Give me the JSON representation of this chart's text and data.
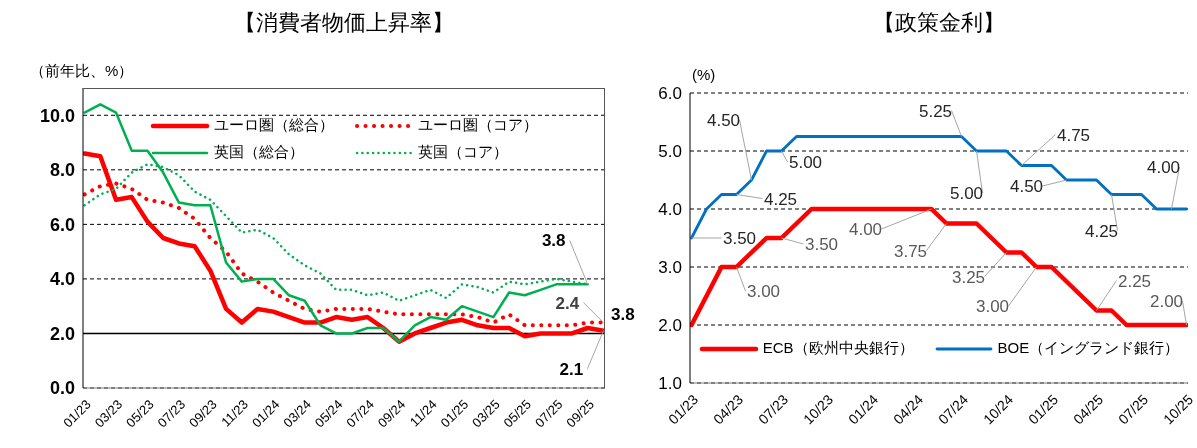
{
  "chart_data": [
    {
      "type": "line",
      "title": "【消費者物価上昇率】",
      "ylabel": "（前年比、%）",
      "categories": [
        "01/23",
        null,
        "03/23",
        null,
        "05/23",
        null,
        "07/23",
        null,
        "09/23",
        null,
        "11/23",
        null,
        "01/24",
        null,
        "03/24",
        null,
        "05/24",
        null,
        "07/24",
        null,
        "09/24",
        null,
        "11/24",
        null,
        "01/25",
        null,
        "03/25",
        null,
        "05/25",
        null,
        "07/25",
        null,
        "09/25",
        null
      ],
      "series": [
        {
          "name": "ユーロ圏（総合）",
          "color": "#ff0000",
          "line_style": "solid",
          "values": [
            8.6,
            8.5,
            6.9,
            7.0,
            6.1,
            5.5,
            5.3,
            5.2,
            4.3,
            2.9,
            2.4,
            2.9,
            2.8,
            2.6,
            2.4,
            2.4,
            2.6,
            2.5,
            2.6,
            2.2,
            1.7,
            2.0,
            2.2,
            2.4,
            2.5,
            2.3,
            2.2,
            2.2,
            1.9,
            2.0,
            2.0,
            2.0,
            2.2,
            2.1
          ],
          "value_labels": [
            null,
            null,
            null,
            null,
            null,
            null,
            null,
            null,
            null,
            null,
            null,
            null,
            null,
            null,
            null,
            null,
            null,
            null,
            null,
            null,
            null,
            null,
            null,
            null,
            null,
            null,
            null,
            null,
            null,
            null,
            null,
            null,
            null,
            "2.1"
          ]
        },
        {
          "name": "ユーロ圏（コア）",
          "color": "#ff0000",
          "line_style": "dotted",
          "values": [
            7.1,
            7.4,
            7.5,
            7.3,
            6.9,
            6.8,
            6.6,
            6.2,
            5.5,
            5.0,
            4.2,
            3.9,
            3.5,
            3.2,
            2.9,
            2.8,
            2.9,
            2.9,
            2.9,
            2.8,
            2.7,
            2.7,
            2.7,
            2.7,
            2.7,
            2.6,
            2.4,
            2.7,
            2.3,
            2.3,
            2.3,
            2.3,
            2.4,
            2.4
          ],
          "value_labels": [
            null,
            null,
            null,
            null,
            null,
            null,
            null,
            null,
            null,
            null,
            null,
            null,
            null,
            null,
            null,
            null,
            null,
            null,
            null,
            null,
            null,
            null,
            null,
            null,
            null,
            null,
            null,
            null,
            null,
            null,
            null,
            null,
            null,
            "2.4"
          ]
        },
        {
          "name": "英国（総合）",
          "color": "#00b050",
          "line_style": "solid",
          "values": [
            10.1,
            10.4,
            10.1,
            8.7,
            8.7,
            7.9,
            6.8,
            6.7,
            6.7,
            4.6,
            3.9,
            4.0,
            4.0,
            3.4,
            3.2,
            2.3,
            2.0,
            2.0,
            2.2,
            2.2,
            1.7,
            2.3,
            2.6,
            2.5,
            3.0,
            2.8,
            2.6,
            3.5,
            3.4,
            3.6,
            3.8,
            3.8,
            3.8,
            null
          ],
          "value_labels": [
            null,
            null,
            null,
            null,
            null,
            null,
            null,
            null,
            null,
            null,
            null,
            null,
            null,
            null,
            null,
            null,
            null,
            null,
            null,
            null,
            null,
            null,
            null,
            null,
            null,
            null,
            null,
            null,
            null,
            null,
            null,
            null,
            "3.8",
            null
          ]
        },
        {
          "name": "英国（コア）",
          "color": "#00b050",
          "line_style": "dotted",
          "values": [
            6.7,
            7.1,
            7.3,
            7.9,
            8.2,
            8.1,
            7.8,
            7.2,
            6.9,
            6.3,
            5.7,
            5.8,
            5.5,
            4.9,
            4.5,
            4.2,
            3.6,
            3.6,
            3.4,
            3.5,
            3.2,
            3.4,
            3.6,
            3.3,
            3.8,
            3.7,
            3.5,
            3.9,
            3.8,
            3.9,
            4.0,
            3.9,
            3.8,
            null
          ]
        }
      ],
      "ylim": [
        0,
        11
      ],
      "yticks": [
        {
          "value": 0,
          "label": "0.0"
        },
        {
          "value": 2,
          "label": "2.0"
        },
        {
          "value": 4,
          "label": "4.0"
        },
        {
          "value": 6,
          "label": "6.0"
        },
        {
          "value": 8,
          "label": "8.0"
        },
        {
          "value": 10,
          "label": "10.0"
        }
      ],
      "grid": "y",
      "legend": "top",
      "ref_lines": [
        {
          "axis": "y",
          "value": 2,
          "color": "#000000",
          "line_style": "solid"
        }
      ],
      "annotations": [
        "3.8"
      ]
    },
    {
      "type": "line",
      "title": "【政策金利】",
      "ylabel": "(%)",
      "categories": [
        "01/23",
        null,
        null,
        "04/23",
        null,
        null,
        "07/23",
        null,
        null,
        "10/23",
        null,
        null,
        "01/24",
        null,
        null,
        "04/24",
        null,
        null,
        "07/24",
        null,
        null,
        "10/24",
        null,
        null,
        "01/25",
        null,
        null,
        "04/25",
        null,
        null,
        "07/25",
        null,
        null,
        "10/25"
      ],
      "series": [
        {
          "name": "ECB（欧州中央銀行）",
          "color": "#ff0000",
          "line_style": "solid",
          "values": [
            2.0,
            2.5,
            3.0,
            3.0,
            3.25,
            3.5,
            3.5,
            3.75,
            4.0,
            4.0,
            4.0,
            4.0,
            4.0,
            4.0,
            4.0,
            4.0,
            4.0,
            3.75,
            3.75,
            3.75,
            3.5,
            3.25,
            3.25,
            3.0,
            3.0,
            2.75,
            2.5,
            2.25,
            2.25,
            2.0,
            2.0,
            2.0,
            2.0,
            2.0
          ],
          "value_labels": [
            null,
            null,
            null,
            "3.00",
            null,
            null,
            "3.50",
            null,
            null,
            null,
            null,
            null,
            null,
            null,
            null,
            null,
            "4.00",
            "3.75",
            null,
            null,
            null,
            "3.25",
            null,
            "3.00",
            null,
            null,
            null,
            "2.25",
            null,
            null,
            null,
            null,
            null,
            "2.00"
          ]
        },
        {
          "name": "BOE（イングランド銀行）",
          "color": "#0070c0",
          "line_style": "solid",
          "values": [
            3.5,
            4.0,
            4.25,
            4.25,
            4.5,
            5.0,
            5.0,
            5.25,
            5.25,
            5.25,
            5.25,
            5.25,
            5.25,
            5.25,
            5.25,
            5.25,
            5.25,
            5.25,
            5.25,
            5.0,
            5.0,
            5.0,
            4.75,
            4.75,
            4.75,
            4.5,
            4.5,
            4.5,
            4.25,
            4.25,
            4.25,
            4.0,
            4.0,
            4.0
          ],
          "value_labels": [
            "3.50",
            null,
            null,
            "4.25",
            "4.50",
            null,
            "5.00",
            null,
            null,
            null,
            null,
            null,
            null,
            null,
            null,
            null,
            null,
            null,
            "5.25",
            "5.00",
            null,
            null,
            "4.75",
            null,
            null,
            "4.50",
            null,
            null,
            "4.25",
            null,
            null,
            null,
            "4.00",
            null
          ]
        }
      ],
      "ylim": [
        1,
        6
      ],
      "yticks": [
        {
          "value": 1,
          "label": "1.0"
        },
        {
          "value": 2,
          "label": "2.0"
        },
        {
          "value": 3,
          "label": "3.0"
        },
        {
          "value": 4,
          "label": "4.0"
        },
        {
          "value": 5,
          "label": "5.0"
        },
        {
          "value": 6,
          "label": "6.0"
        }
      ],
      "grid": "y",
      "legend": "bottom"
    }
  ]
}
